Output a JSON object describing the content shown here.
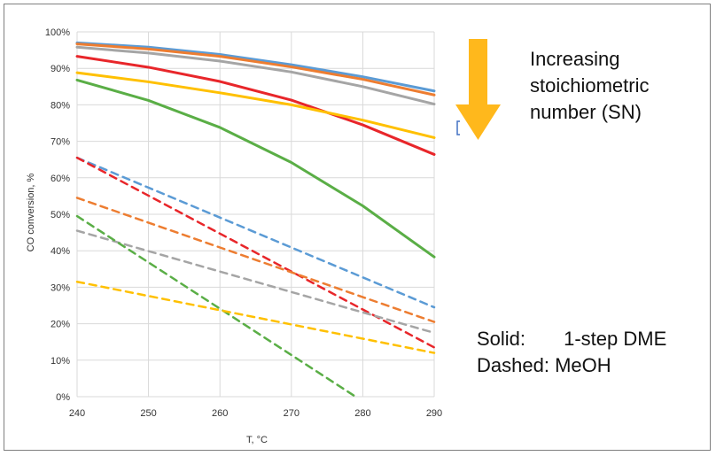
{
  "chart_data": {
    "type": "line",
    "xlabel": "T, °C",
    "ylabel": "CO conversion, %",
    "xlim": [
      240,
      290
    ],
    "ylim": [
      0,
      100
    ],
    "x_ticks": [
      "240",
      "250",
      "260",
      "270",
      "280",
      "290"
    ],
    "y_ticks": [
      "0%",
      "10%",
      "20%",
      "30%",
      "40%",
      "50%",
      "60%",
      "70%",
      "80%",
      "90%",
      "100%"
    ],
    "grid": true,
    "series": [
      {
        "style": "solid",
        "color": "#5b9bd5",
        "x": [
          240,
          250,
          260,
          270,
          280,
          290
        ],
        "y": [
          97,
          95.8,
          93.8,
          91,
          87.7,
          83.8
        ]
      },
      {
        "style": "solid",
        "color": "#ed7d31",
        "x": [
          240,
          250,
          260,
          270,
          280,
          290
        ],
        "y": [
          96.7,
          95.3,
          93.3,
          90.4,
          87,
          82.7
        ]
      },
      {
        "style": "solid",
        "color": "#a5a5a5",
        "x": [
          240,
          250,
          260,
          270,
          280,
          290
        ],
        "y": [
          95.8,
          94.2,
          92,
          89,
          85,
          80.2
        ]
      },
      {
        "style": "solid",
        "color": "#e8262a",
        "x": [
          240,
          250,
          260,
          270,
          280,
          290
        ],
        "y": [
          93.3,
          90.3,
          86.4,
          81.3,
          74.5,
          66.4
        ]
      },
      {
        "style": "solid",
        "color": "#ffc000",
        "x": [
          240,
          250,
          260,
          270,
          280,
          290
        ],
        "y": [
          88.8,
          86.3,
          83.3,
          80,
          75.8,
          71
        ]
      },
      {
        "style": "solid",
        "color": "#5aae46",
        "x": [
          240,
          250,
          260,
          270,
          280,
          290
        ],
        "y": [
          86.8,
          81.2,
          73.8,
          64.2,
          52.3,
          38.3
        ]
      },
      {
        "style": "dashed",
        "color": "#5b9bd5",
        "x": [
          240,
          290
        ],
        "y": [
          65.5,
          24.5
        ]
      },
      {
        "style": "dashed",
        "color": "#e8262a",
        "x": [
          240,
          290
        ],
        "y": [
          65.5,
          13.5
        ]
      },
      {
        "style": "dashed",
        "color": "#ed7d31",
        "x": [
          240,
          290
        ],
        "y": [
          54.5,
          20.5
        ]
      },
      {
        "style": "dashed",
        "color": "#a5a5a5",
        "x": [
          240,
          290
        ],
        "y": [
          45.5,
          17.5
        ]
      },
      {
        "style": "dashed",
        "color": "#5aae46",
        "x": [
          240,
          279
        ],
        "y": [
          49.5,
          0
        ]
      },
      {
        "style": "dashed",
        "color": "#ffc000",
        "x": [
          240,
          290
        ],
        "y": [
          31.5,
          12
        ]
      }
    ]
  },
  "annotations": {
    "sn_line1": "Increasing",
    "sn_line2": "stoichiometric",
    "sn_line3": "number  (SN)",
    "solid_key": "Solid:",
    "solid_value": "1-step DME",
    "dashed_key": "Dashed:",
    "dashed_value": "MeOH",
    "arrow_color": "#ffb81c",
    "bracket_color": "#4472c4"
  }
}
